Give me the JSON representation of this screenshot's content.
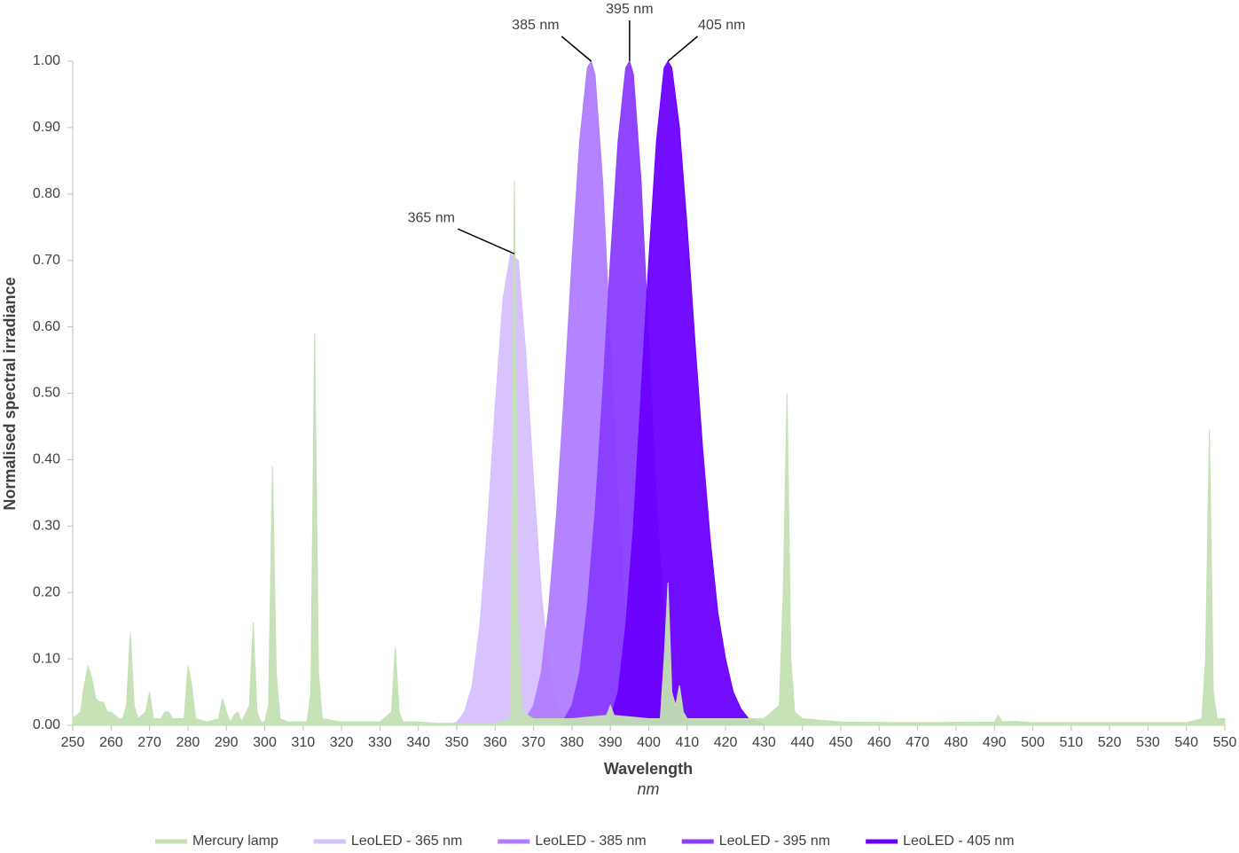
{
  "chart_data": {
    "type": "area",
    "xlabel": "Wavelength",
    "xunit": "nm",
    "ylabel": "Normalised spectral irradiance",
    "xlim": [
      250,
      550
    ],
    "ylim": [
      0,
      1
    ],
    "xticks": [
      250,
      260,
      270,
      280,
      290,
      300,
      310,
      320,
      330,
      340,
      350,
      360,
      370,
      380,
      390,
      400,
      410,
      420,
      430,
      440,
      450,
      460,
      470,
      480,
      490,
      500,
      510,
      520,
      530,
      540,
      550
    ],
    "yticks": [
      {
        "value": 0,
        "label": "0.00"
      },
      {
        "value": 0.1,
        "label": "0.10"
      },
      {
        "value": 0.2,
        "label": "0.20"
      },
      {
        "value": 0.3,
        "label": "0.30"
      },
      {
        "value": 0.4,
        "label": "0.40"
      },
      {
        "value": 0.5,
        "label": "0.50"
      },
      {
        "value": 0.6,
        "label": "0.60"
      },
      {
        "value": 0.7,
        "label": "0.70"
      },
      {
        "value": 0.8,
        "label": "0.80"
      },
      {
        "value": 0.9,
        "label": "0.90"
      },
      {
        "value": 1,
        "label": "1.00"
      }
    ],
    "legend": "bottom",
    "series": [
      {
        "name": "LeoLED - 365 nm",
        "color": "#d6c0ff",
        "x": [
          348,
          350,
          352,
          354,
          356,
          358,
          360,
          362,
          364,
          366,
          368,
          370,
          372,
          374,
          376,
          378,
          380
        ],
        "values": [
          0,
          0.005,
          0.02,
          0.06,
          0.15,
          0.3,
          0.48,
          0.64,
          0.71,
          0.7,
          0.56,
          0.37,
          0.2,
          0.09,
          0.03,
          0.01,
          0
        ]
      },
      {
        "name": "LeoLED - 385 nm",
        "color": "#b07cff",
        "x": [
          368,
          370,
          372,
          374,
          376,
          378,
          380,
          382,
          384,
          385,
          386,
          388,
          390,
          392,
          394,
          396,
          398,
          400,
          402
        ],
        "values": [
          0.01,
          0.03,
          0.08,
          0.18,
          0.32,
          0.5,
          0.7,
          0.88,
          0.99,
          1.0,
          0.98,
          0.82,
          0.58,
          0.34,
          0.16,
          0.06,
          0.02,
          0.005,
          0
        ]
      },
      {
        "name": "LeoLED - 395 nm",
        "color": "#8a3cff",
        "x": [
          378,
          380,
          382,
          384,
          386,
          388,
          390,
          392,
          394,
          395,
          396,
          398,
          400,
          402,
          404,
          406,
          408,
          410,
          412
        ],
        "values": [
          0.01,
          0.03,
          0.08,
          0.18,
          0.32,
          0.5,
          0.7,
          0.88,
          0.99,
          1.0,
          0.98,
          0.82,
          0.58,
          0.34,
          0.16,
          0.06,
          0.02,
          0.005,
          0
        ]
      },
      {
        "name": "LeoLED - 405 nm",
        "color": "#6a00ff",
        "x": [
          390,
          392,
          394,
          396,
          398,
          400,
          402,
          404,
          405,
          406,
          408,
          410,
          412,
          414,
          416,
          418,
          420,
          422,
          424,
          426,
          430
        ],
        "values": [
          0.01,
          0.05,
          0.15,
          0.3,
          0.5,
          0.7,
          0.88,
          0.99,
          1.0,
          0.99,
          0.9,
          0.75,
          0.58,
          0.42,
          0.28,
          0.17,
          0.1,
          0.05,
          0.025,
          0.01,
          0.002
        ]
      },
      {
        "name": "Mercury lamp",
        "color": "#c5e0b4",
        "x": [
          250,
          252,
          253,
          254,
          255,
          256,
          257,
          258,
          259,
          260,
          261,
          262,
          263,
          264,
          265,
          266,
          267,
          269,
          270,
          271,
          273,
          274,
          275,
          276,
          279,
          280,
          281,
          282,
          285,
          288,
          289,
          290,
          291,
          292,
          293,
          294,
          296,
          297,
          298,
          299,
          300,
          301,
          302,
          303,
          304,
          306,
          311,
          312,
          313,
          314,
          315,
          320,
          330,
          333,
          334,
          335,
          336,
          340,
          345,
          350,
          360,
          364,
          365,
          366,
          367,
          370,
          380,
          389,
          390,
          391,
          400,
          403,
          404,
          405,
          406,
          407,
          408,
          409,
          410,
          420,
          430,
          434,
          435,
          436,
          437,
          438,
          440,
          450,
          470,
          490,
          491,
          492,
          495,
          500,
          540,
          544,
          545,
          546,
          547,
          548,
          550
        ],
        "values": [
          0.01,
          0.02,
          0.06,
          0.09,
          0.07,
          0.04,
          0.035,
          0.035,
          0.02,
          0.02,
          0.015,
          0.01,
          0.01,
          0.03,
          0.14,
          0.03,
          0.01,
          0.02,
          0.05,
          0.01,
          0.01,
          0.02,
          0.02,
          0.01,
          0.01,
          0.09,
          0.06,
          0.01,
          0.005,
          0.01,
          0.04,
          0.02,
          0.005,
          0.015,
          0.02,
          0.005,
          0.03,
          0.155,
          0.02,
          0.005,
          0.005,
          0.03,
          0.39,
          0.08,
          0.01,
          0.005,
          0.005,
          0.05,
          0.59,
          0.08,
          0.01,
          0.005,
          0.005,
          0.02,
          0.117,
          0.02,
          0.005,
          0.005,
          0.003,
          0.003,
          0.003,
          0.01,
          0.82,
          0.15,
          0.02,
          0.01,
          0.01,
          0.015,
          0.03,
          0.015,
          0.01,
          0.01,
          0.1,
          0.215,
          0.05,
          0.03,
          0.06,
          0.02,
          0.01,
          0.01,
          0.01,
          0.03,
          0.2,
          0.5,
          0.1,
          0.02,
          0.01,
          0.005,
          0.004,
          0.005,
          0.015,
          0.005,
          0.006,
          0.004,
          0.004,
          0.01,
          0.1,
          0.445,
          0.05,
          0.01,
          0.01
        ]
      }
    ],
    "legend_order": [
      4,
      0,
      1,
      2,
      3
    ],
    "annotations": [
      {
        "text": "365 nm",
        "x": 365,
        "y": 0.71
      },
      {
        "text": "385 nm",
        "x": 385,
        "y": 1.0
      },
      {
        "text": "395 nm",
        "x": 395,
        "y": 1.0
      },
      {
        "text": "405 nm",
        "x": 405,
        "y": 1.0
      }
    ]
  }
}
